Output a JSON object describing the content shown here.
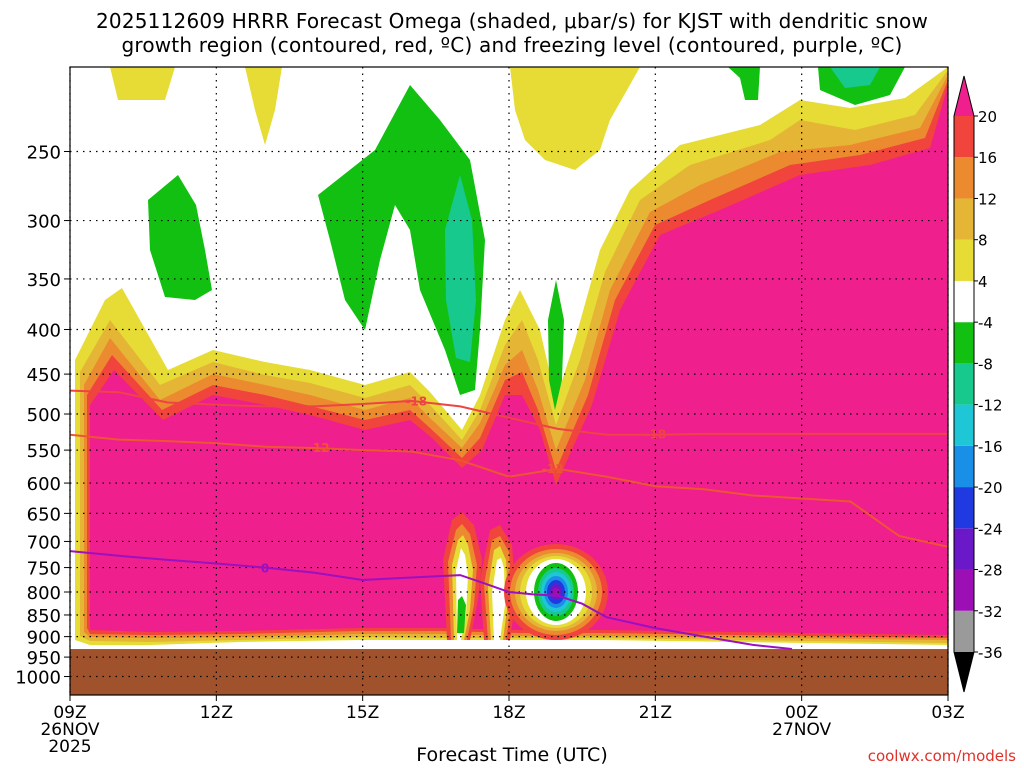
{
  "title": {
    "line1": "2025112609 HRRR Forecast Omega (shaded, μbar/s) for KJST with dendritic snow",
    "line2": "growth region (contoured, red, ºC) and freezing level (contoured, purple, ºC)"
  },
  "x_axis_title": "Forecast Time (UTC)",
  "credit": "coolwx.com/models",
  "chart_data": {
    "type": "heatmap",
    "title": "2025112609 HRRR Forecast Omega (shaded, μbar/s) for KJST with dendritic snow growth region (contoured, red, ºC) and freezing level (contoured, purple, ºC)",
    "xlabel": "Forecast Time (UTC)",
    "ylabel": "",
    "x_tick_labels": [
      {
        "hour": 0,
        "label": "09Z",
        "sub1": "26NOV",
        "sub2": "2025"
      },
      {
        "hour": 3,
        "label": "12Z"
      },
      {
        "hour": 6,
        "label": "15Z"
      },
      {
        "hour": 9,
        "label": "18Z"
      },
      {
        "hour": 12,
        "label": "21Z"
      },
      {
        "hour": 15,
        "label": "00Z",
        "sub1": "27NOV"
      },
      {
        "hour": 18,
        "label": "03Z"
      }
    ],
    "x_range_hours": [
      0,
      18
    ],
    "y_axis": {
      "scale": "log-pressure",
      "inverted": true,
      "range_hpa": [
        200,
        1050
      ],
      "ticks": [
        250,
        300,
        350,
        400,
        450,
        500,
        550,
        600,
        650,
        700,
        750,
        800,
        850,
        900,
        950,
        1000
      ]
    },
    "grid": true,
    "colorbar": {
      "position": "right",
      "bins": [
        {
          "range": "< -36",
          "color": "#000000"
        },
        {
          "range": "-36 to -32",
          "color": "#9a9a9a"
        },
        {
          "range": "-32 to -28",
          "color": "#9b0fb5"
        },
        {
          "range": "-28 to -24",
          "color": "#6a18c8"
        },
        {
          "range": "-24 to -20",
          "color": "#1f3ae0"
        },
        {
          "range": "-20 to -16",
          "color": "#1a8fe8"
        },
        {
          "range": "-16 to -12",
          "color": "#1fc6d6"
        },
        {
          "range": "-12 to -8",
          "color": "#17c98c"
        },
        {
          "range": "-8 to -4",
          "color": "#12c012"
        },
        {
          "range": "-4 to 4",
          "color": "#ffffff"
        },
        {
          "range": "4 to 8",
          "color": "#e6dc35"
        },
        {
          "range": "8 to 12",
          "color": "#e5b535"
        },
        {
          "range": "12 to 16",
          "color": "#ec8a2f"
        },
        {
          "range": "16 to 20",
          "color": "#f0443c"
        },
        {
          "range": "> 20",
          "color": "#ef1f8d"
        }
      ],
      "tick_labels": [
        "-36",
        "-32",
        "-28",
        "-24",
        "-20",
        "-16",
        "-12",
        "-8",
        "-4",
        "4",
        "8",
        "12",
        "16",
        "20"
      ]
    },
    "ground_color": "#a0522d",
    "ground_top_hpa": 930,
    "contours": [
      {
        "name": "-18",
        "color": "#ee4444",
        "points": [
          [
            0,
            470
          ],
          [
            1,
            472
          ],
          [
            2,
            485
          ],
          [
            3,
            488
          ],
          [
            4,
            490
          ],
          [
            5,
            490
          ],
          [
            6,
            487
          ],
          [
            7,
            483
          ],
          [
            8,
            490
          ],
          [
            9,
            505
          ],
          [
            10,
            520
          ],
          [
            11,
            528
          ],
          [
            12,
            528
          ],
          [
            13,
            527
          ],
          [
            14,
            527
          ],
          [
            15,
            527
          ],
          [
            16,
            527
          ],
          [
            17,
            527
          ],
          [
            18,
            527
          ]
        ],
        "labels": [
          {
            "x": 7.1,
            "p": 484
          },
          {
            "x": 12.0,
            "p": 528
          }
        ]
      },
      {
        "name": "-12",
        "color": "#ee5533",
        "points": [
          [
            0,
            528
          ],
          [
            1,
            535
          ],
          [
            2,
            537
          ],
          [
            3,
            540
          ],
          [
            4,
            545
          ],
          [
            5,
            547
          ],
          [
            6,
            550
          ],
          [
            7,
            552
          ],
          [
            8,
            565
          ],
          [
            9,
            590
          ],
          [
            10,
            578
          ],
          [
            11,
            590
          ],
          [
            12,
            605
          ],
          [
            13,
            610
          ],
          [
            14,
            620
          ],
          [
            15,
            625
          ],
          [
            16,
            630
          ],
          [
            17,
            690
          ],
          [
            18,
            710
          ]
        ],
        "labels": [
          {
            "x": 5.1,
            "p": 547
          },
          {
            "x": 9.9,
            "p": 578
          }
        ]
      },
      {
        "name": "0",
        "color": "#9b10c0",
        "points": [
          [
            0,
            718
          ],
          [
            1,
            727
          ],
          [
            2,
            735
          ],
          [
            3,
            742
          ],
          [
            4,
            750
          ],
          [
            5,
            760
          ],
          [
            6,
            775
          ],
          [
            7,
            770
          ],
          [
            8,
            765
          ],
          [
            8.5,
            782
          ],
          [
            9,
            800
          ],
          [
            9.5,
            805
          ],
          [
            10,
            808
          ],
          [
            10.5,
            825
          ],
          [
            11,
            855
          ],
          [
            12,
            880
          ],
          [
            13,
            900
          ],
          [
            14,
            920
          ],
          [
            14.8,
            930
          ]
        ],
        "labels": [
          {
            "x": 4.0,
            "p": 752
          }
        ]
      }
    ]
  }
}
